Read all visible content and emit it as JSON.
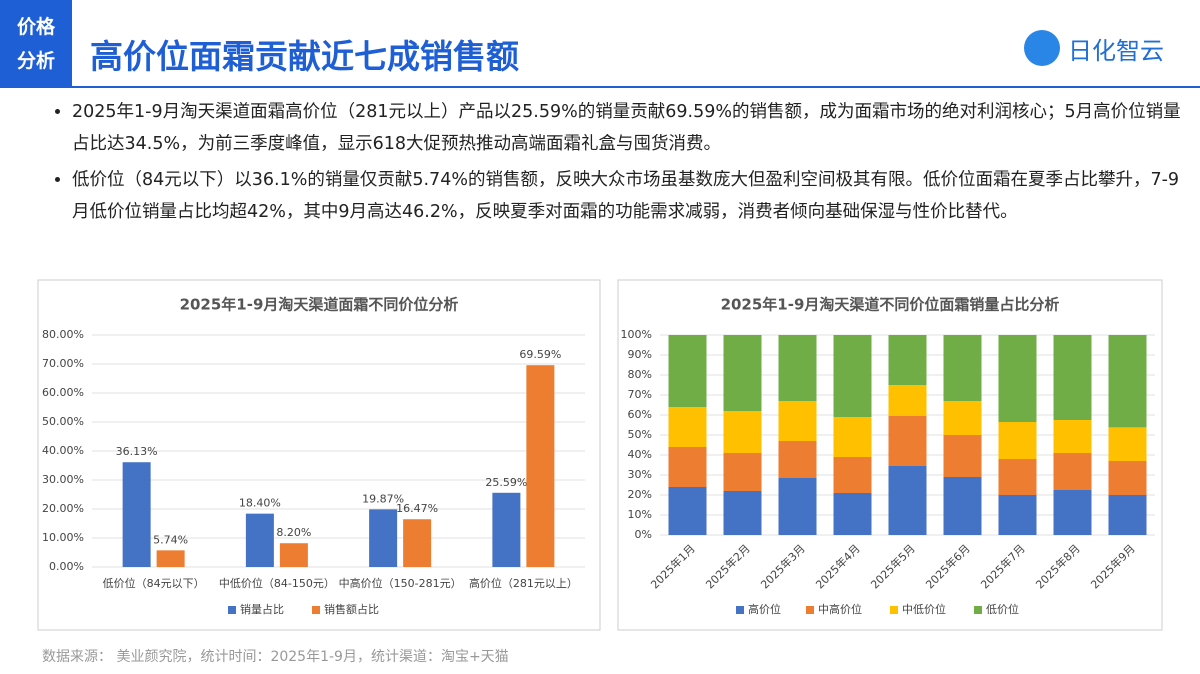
{
  "header": {
    "tag": [
      "价格",
      "分析"
    ],
    "title": "高价位面霜贡献近七成销售额",
    "logo": "日化智云"
  },
  "bullets": [
    "2025年1-9月淘天渠道面霜高价位（281元以上）产品以25.59%的销量贡献69.59%的销售额，成为面霜市场的绝对利润核心；5月高价位销量占比达34.5%，为前三季度峰值，显示618大促预热推动高端面霜礼盒与囤货消费。",
    "低价位（84元以下）以36.1%的销量仅贡献5.74%的销售额，反映大众市场虽基数庞大但盈利空间极其有限。低价位面霜在夏季占比攀升，7-9月低价位销量占比均超42%，其中9月高达46.2%，反映夏季对面霜的功能需求减弱，消费者倾向基础保湿与性价比替代。"
  ],
  "chart_data": [
    {
      "type": "bar",
      "title": "2025年1-9月淘天渠道面霜不同价位分析",
      "categories": [
        "低价位（84元以下）",
        "中低价位（84-150元）",
        "中高价位（150-281元）",
        "高价位（281元以上）"
      ],
      "series": [
        {
          "name": "销量占比",
          "color": "#4472c4",
          "values": [
            36.13,
            18.4,
            19.87,
            25.59
          ],
          "value_labels": [
            "36.13%",
            "18.40%",
            "19.87%",
            "25.59%"
          ]
        },
        {
          "name": "销售额占比",
          "color": "#ed7d31",
          "values": [
            5.74,
            8.2,
            16.47,
            69.59
          ],
          "value_labels": [
            "5.74%",
            "8.20%",
            "16.47%",
            "69.59%"
          ]
        }
      ],
      "ylim": [
        0,
        80
      ],
      "yticks": [
        {
          "value": 0,
          "label": "0.00%"
        },
        {
          "value": 10,
          "label": "10.00%"
        },
        {
          "value": 20,
          "label": "20.00%"
        },
        {
          "value": 30,
          "label": "30.00%"
        },
        {
          "value": 40,
          "label": "40.00%"
        },
        {
          "value": 50,
          "label": "50.00%"
        },
        {
          "value": 60,
          "label": "60.00%"
        },
        {
          "value": 70,
          "label": "70.00%"
        },
        {
          "value": 80,
          "label": "80.00%"
        }
      ],
      "grid": true
    },
    {
      "type": "stacked_bar",
      "title": "2025年1-9月淘天渠道不同价位面霜销量占比分析",
      "categories": [
        "2025年1月",
        "2025年2月",
        "2025年3月",
        "2025年4月",
        "2025年5月",
        "2025年6月",
        "2025年7月",
        "2025年8月",
        "2025年9月"
      ],
      "series": [
        {
          "name": "高价位",
          "color": "#4472c4",
          "values": [
            24,
            22,
            28.5,
            21,
            34.5,
            29,
            20,
            22.5,
            20
          ]
        },
        {
          "name": "中高价位",
          "color": "#ed7d31",
          "values": [
            20,
            19,
            18.5,
            18,
            25,
            21,
            18,
            18.5,
            17
          ]
        },
        {
          "name": "中低价位",
          "color": "#ffc000",
          "values": [
            20,
            21,
            20,
            20,
            15.5,
            17,
            18.5,
            16.5,
            16.8
          ]
        },
        {
          "name": "低价位",
          "color": "#70ad47",
          "values": [
            36,
            38,
            33,
            41,
            25,
            33,
            43.5,
            42.5,
            46.2
          ]
        }
      ],
      "ylim": [
        0,
        100
      ],
      "yticks": [
        {
          "value": 0,
          "label": "0%"
        },
        {
          "value": 10,
          "label": "10%"
        },
        {
          "value": 20,
          "label": "20%"
        },
        {
          "value": 30,
          "label": "30%"
        },
        {
          "value": 40,
          "label": "40%"
        },
        {
          "value": 50,
          "label": "50%"
        },
        {
          "value": 60,
          "label": "60%"
        },
        {
          "value": 70,
          "label": "70%"
        },
        {
          "value": 80,
          "label": "80%"
        },
        {
          "value": 90,
          "label": "90%"
        },
        {
          "value": 100,
          "label": "100%"
        }
      ],
      "grid": true
    }
  ],
  "source": "数据来源： 美业颜究院，统计时间：2025年1-9月，统计渠道：淘宝+天猫"
}
